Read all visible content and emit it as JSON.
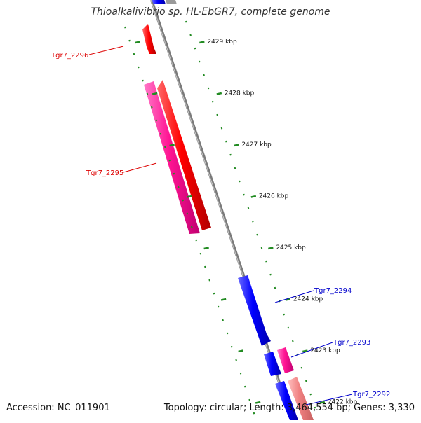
{
  "title": "Thioalkalivibrio sp. HL-EbGR7, complete genome",
  "footer": {
    "accession": "Accession: NC_011901",
    "topology": "Topology: circular; Length: 3,464,554 bp; Genes: 3,330"
  },
  "ruler": {
    "ticks": [
      {
        "kbp": 2429,
        "label": "2429 kbp"
      },
      {
        "kbp": 2428,
        "label": "2428 kbp"
      },
      {
        "kbp": 2427,
        "label": "2427 kbp"
      },
      {
        "kbp": 2426,
        "label": "2426 kbp"
      },
      {
        "kbp": 2425,
        "label": "2425 kbp"
      },
      {
        "kbp": 2424,
        "label": "2424 kbp"
      },
      {
        "kbp": 2423,
        "label": "2423 kbp"
      },
      {
        "kbp": 2422,
        "label": "2422 kbp"
      }
    ]
  },
  "genes": [
    {
      "id": "Tgr7_2296",
      "strand": "reverse",
      "color": "#ff0000"
    },
    {
      "id": "Tgr7_2295",
      "strand": "reverse",
      "color": "#ff0000"
    },
    {
      "id": "Tgr7_2294",
      "strand": "forward",
      "color": "#0000ff"
    },
    {
      "id": "Tgr7_2293",
      "strand": "forward",
      "color": "#0000ff"
    },
    {
      "id": "Tgr7_2292",
      "strand": "forward",
      "color": "#0000ff"
    }
  ],
  "colors": {
    "backbone": "#808080",
    "forward_cds": "#0000ff",
    "reverse_cds": "#ff0000",
    "magenta_feature": "#ff1493",
    "light_red_feature": "#f08080",
    "ruler": "#228b22",
    "forward_label": "#0000cc",
    "reverse_label": "#dd0000"
  }
}
